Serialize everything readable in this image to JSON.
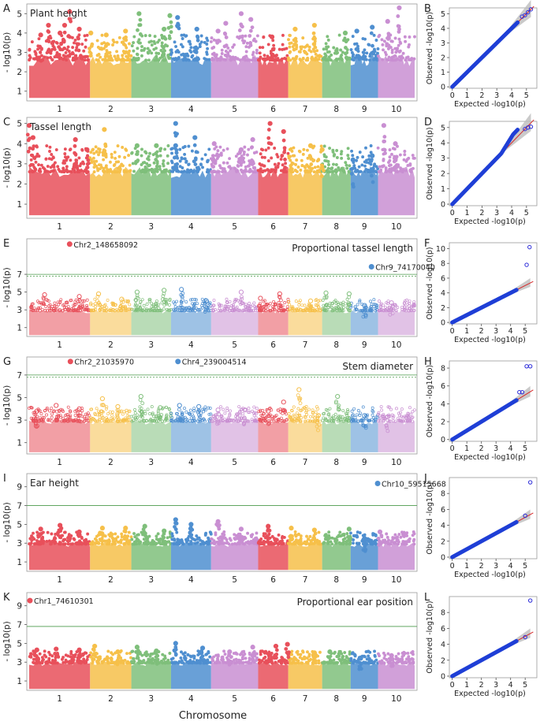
{
  "figure": {
    "xlabel": "Chromosome",
    "chrom_labels": [
      "1",
      "2",
      "3",
      "4",
      "5",
      "6",
      "7",
      "8",
      "9",
      "10"
    ],
    "chrom_colors": [
      "#e8505b",
      "#f6c04a",
      "#7fbf7b",
      "#4f8fd0",
      "#c98fd2",
      "#e8505b",
      "#f6c04a",
      "#7fbf7b",
      "#4f8fd0",
      "#c98fd2"
    ],
    "qq_xlabel": "Expected -log10(p)",
    "qq_ylabel": "Observed -log10(p)",
    "manhattan_ylabel": "- log10(p)"
  },
  "chart_data": [
    {
      "type": "scatter",
      "kind": "manhattan",
      "panel": "A",
      "title": "Plant height",
      "title_pos": "top-left",
      "ylim": [
        0.5,
        5.5
      ],
      "yticks": [
        1,
        2,
        3,
        4,
        5
      ],
      "filled": true,
      "threshold": null,
      "peaks": [
        [
          0.3,
          3.9
        ],
        [
          0.5,
          4.4
        ],
        [
          0.8,
          4.0
        ],
        [
          0.92,
          4.4
        ],
        [
          1.05,
          5.1
        ],
        [
          1.3,
          4.2
        ],
        [
          1.6,
          4.0
        ],
        [
          2.0,
          3.9
        ],
        [
          2.5,
          4.1
        ],
        [
          2.85,
          5.0
        ],
        [
          3.5,
          4.2
        ],
        [
          3.65,
          4.9
        ],
        [
          3.85,
          4.8
        ],
        [
          4.35,
          4.2
        ],
        [
          4.9,
          4.1
        ],
        [
          5.1,
          4.5
        ],
        [
          5.5,
          5.0
        ],
        [
          5.75,
          4.7
        ],
        [
          6.3,
          3.8
        ],
        [
          6.9,
          4.2
        ],
        [
          7.4,
          4.4
        ],
        [
          8.2,
          4.0
        ],
        [
          8.5,
          4.1
        ],
        [
          8.9,
          4.3
        ],
        [
          9.3,
          4.6
        ],
        [
          9.6,
          5.3
        ]
      ],
      "highlights": []
    },
    {
      "type": "scatter",
      "kind": "manhattan",
      "panel": "C",
      "title": "Tassel length",
      "title_pos": "top-left",
      "ylim": [
        0.3,
        5.3
      ],
      "yticks": [
        1,
        2,
        3,
        4,
        5
      ],
      "filled": true,
      "threshold": null,
      "peaks": [
        [
          0.0,
          4.9
        ],
        [
          0.1,
          4.3
        ],
        [
          1.2,
          4.2
        ],
        [
          1.5,
          3.7
        ],
        [
          1.95,
          4.7
        ],
        [
          2.8,
          3.9
        ],
        [
          3.3,
          3.9
        ],
        [
          3.8,
          3.9
        ],
        [
          3.8,
          5.0
        ],
        [
          4.3,
          4.3
        ],
        [
          4.8,
          4.0
        ],
        [
          5.5,
          3.7
        ],
        [
          5.8,
          4.2
        ],
        [
          6.25,
          5.0
        ],
        [
          6.6,
          4.6
        ],
        [
          7.3,
          3.9
        ],
        [
          7.6,
          3.7
        ],
        [
          8.4,
          3.2
        ],
        [
          8.9,
          3.4
        ],
        [
          9.2,
          4.9
        ],
        [
          9.5,
          4.0
        ]
      ],
      "highlights": []
    },
    {
      "type": "scatter",
      "kind": "manhattan",
      "panel": "E",
      "title": "Proportional tassel length",
      "title_pos": "top-right",
      "ylim": [
        0,
        11
      ],
      "yticks": [
        1,
        3,
        5,
        7
      ],
      "filled": false,
      "threshold": 6.8,
      "threshold2": 7.0,
      "peaks": [
        [
          0.4,
          4.7
        ],
        [
          1.3,
          4.5
        ],
        [
          1.8,
          4.8
        ],
        [
          2.4,
          4.2
        ],
        [
          2.8,
          5.0
        ],
        [
          3.5,
          5.2
        ],
        [
          3.95,
          5.3
        ],
        [
          4.6,
          4.0
        ],
        [
          5.5,
          5.0
        ],
        [
          6.0,
          4.3
        ],
        [
          6.5,
          4.8
        ],
        [
          7.3,
          4.0
        ],
        [
          7.7,
          4.9
        ],
        [
          8.3,
          4.8
        ],
        [
          8.7,
          3.5
        ],
        [
          9.4,
          3.8
        ]
      ],
      "highlights": [
        {
          "label": "Chr2_148658092",
          "pos": 1.05,
          "y": 10.4
        },
        {
          "label": "Chr9_74170040",
          "pos": 8.88,
          "y": 7.85
        }
      ]
    },
    {
      "type": "scatter",
      "kind": "manhattan",
      "panel": "G",
      "title": "Stem diameter",
      "title_pos": "top-right",
      "ylim": [
        0,
        8.6
      ],
      "yticks": [
        1,
        3,
        5,
        7
      ],
      "filled": false,
      "threshold": 6.8,
      "threshold2": 7.0,
      "peaks": [
        [
          0.2,
          3.8
        ],
        [
          0.7,
          4.3
        ],
        [
          1.3,
          4.0
        ],
        [
          1.9,
          4.9
        ],
        [
          2.3,
          4.2
        ],
        [
          2.9,
          5.1
        ],
        [
          3.4,
          4.1
        ],
        [
          3.9,
          4.3
        ],
        [
          4.4,
          4.2
        ],
        [
          4.9,
          3.9
        ],
        [
          5.6,
          3.9
        ],
        [
          6.2,
          3.8
        ],
        [
          6.6,
          4.6
        ],
        [
          7.0,
          5.7
        ],
        [
          7.5,
          3.4
        ],
        [
          8.0,
          5.1
        ],
        [
          8.7,
          3.4
        ],
        [
          9.3,
          3.3
        ]
      ],
      "highlights": [
        {
          "label": "Chr2_21035970",
          "pos": 1.07,
          "y": 8.2
        },
        {
          "label": "Chr4_239004514",
          "pos": 3.86,
          "y": 8.2
        }
      ]
    },
    {
      "type": "scatter",
      "kind": "manhattan",
      "panel": "I",
      "title": "Ear height",
      "title_pos": "top-left",
      "ylim": [
        0,
        10.4
      ],
      "yticks": [
        1,
        3,
        5,
        7,
        9
      ],
      "filled": true,
      "threshold": 7.0,
      "peaks": [
        [
          0.3,
          4.5
        ],
        [
          0.8,
          4.9
        ],
        [
          1.3,
          4.2
        ],
        [
          1.9,
          4.6
        ],
        [
          2.5,
          4.6
        ],
        [
          3.0,
          4.8
        ],
        [
          3.5,
          4.3
        ],
        [
          3.8,
          5.5
        ],
        [
          4.2,
          5.0
        ],
        [
          4.9,
          5.3
        ],
        [
          5.5,
          4.5
        ],
        [
          6.2,
          4.8
        ],
        [
          6.8,
          4.6
        ],
        [
          7.4,
          4.4
        ],
        [
          8.3,
          4.5
        ],
        [
          8.7,
          3.5
        ],
        [
          9.1,
          4.2
        ]
      ],
      "highlights": [
        {
          "label": "Chr10_59515668",
          "pos": 9.04,
          "y": 9.35
        }
      ]
    },
    {
      "type": "scatter",
      "kind": "manhattan",
      "panel": "K",
      "title": "Proportional ear position",
      "title_pos": "top-right",
      "ylim": [
        0,
        10.4
      ],
      "yticks": [
        1,
        3,
        5,
        7,
        9
      ],
      "filled": true,
      "threshold": 6.8,
      "peaks": [
        [
          0.2,
          4.3
        ],
        [
          0.7,
          4.4
        ],
        [
          1.3,
          4.3
        ],
        [
          1.7,
          4.7
        ],
        [
          2.3,
          4.1
        ],
        [
          2.8,
          4.6
        ],
        [
          3.3,
          4.2
        ],
        [
          3.8,
          5.0
        ],
        [
          4.5,
          4.5
        ],
        [
          5.2,
          4.1
        ],
        [
          5.8,
          4.6
        ],
        [
          6.4,
          4.7
        ],
        [
          6.7,
          4.9
        ],
        [
          7.4,
          4.0
        ],
        [
          7.8,
          4.1
        ],
        [
          8.6,
          3.4
        ],
        [
          9.4,
          3.7
        ]
      ],
      "highlights": [
        {
          "label": "Chr1_74610301",
          "pos": 0.02,
          "y": 9.55
        }
      ]
    },
    {
      "type": "scatter",
      "kind": "qq",
      "panel": "B",
      "xlim": [
        -0.2,
        5.7
      ],
      "ylim": [
        -0.1,
        5.4
      ],
      "xticks": [
        0,
        1,
        2,
        3,
        4,
        5
      ],
      "yticks": [
        0,
        1,
        2,
        3,
        4,
        5
      ],
      "max_expected": 5.3,
      "bulge": 0.0,
      "tail": [
        [
          4.7,
          4.8
        ],
        [
          4.9,
          4.9
        ],
        [
          5.1,
          5.1
        ],
        [
          5.3,
          5.3
        ]
      ]
    },
    {
      "type": "scatter",
      "kind": "qq",
      "panel": "D",
      "xlim": [
        -0.2,
        5.7
      ],
      "ylim": [
        -0.1,
        5.4
      ],
      "xticks": [
        0,
        1,
        2,
        3,
        4,
        5
      ],
      "yticks": [
        0,
        1,
        2,
        3,
        4,
        5
      ],
      "max_expected": 5.3,
      "bulge": 0.45,
      "tail": [
        [
          4.9,
          4.9
        ],
        [
          5.1,
          5.0
        ],
        [
          5.3,
          5.05
        ]
      ]
    },
    {
      "type": "scatter",
      "kind": "qq",
      "panel": "F",
      "xlim": [
        -0.2,
        5.8
      ],
      "ylim": [
        -0.2,
        10.8
      ],
      "xticks": [
        0,
        1,
        2,
        3,
        4,
        5
      ],
      "yticks": [
        0,
        2,
        4,
        6,
        8,
        10
      ],
      "max_expected": 5.35,
      "bulge": 0.0,
      "tail": [
        [
          5.1,
          7.8
        ],
        [
          5.3,
          10.2
        ]
      ]
    },
    {
      "type": "scatter",
      "kind": "qq",
      "panel": "H",
      "xlim": [
        -0.2,
        5.8
      ],
      "ylim": [
        -0.2,
        8.8
      ],
      "xticks": [
        0,
        1,
        2,
        3,
        4,
        5
      ],
      "yticks": [
        0,
        2,
        4,
        6,
        8
      ],
      "max_expected": 5.35,
      "bulge": 0.0,
      "tail": [
        [
          4.6,
          5.3
        ],
        [
          4.8,
          5.3
        ],
        [
          5.1,
          8.2
        ],
        [
          5.35,
          8.2
        ]
      ]
    },
    {
      "type": "scatter",
      "kind": "qq",
      "panel": "J",
      "xlim": [
        -0.2,
        5.8
      ],
      "ylim": [
        -0.2,
        10.0
      ],
      "xticks": [
        0,
        1,
        2,
        3,
        4,
        5
      ],
      "yticks": [
        0,
        2,
        4,
        6,
        8
      ],
      "max_expected": 5.35,
      "bulge": 0.0,
      "tail": [
        [
          5.0,
          5.2
        ],
        [
          5.35,
          9.4
        ]
      ]
    },
    {
      "type": "scatter",
      "kind": "qq",
      "panel": "L",
      "xlim": [
        -0.2,
        5.8
      ],
      "ylim": [
        -0.2,
        10.0
      ],
      "xticks": [
        0,
        1,
        2,
        3,
        4,
        5
      ],
      "yticks": [
        0,
        2,
        4,
        6,
        8
      ],
      "max_expected": 5.35,
      "bulge": 0.0,
      "tail": [
        [
          5.0,
          4.9
        ],
        [
          5.35,
          9.5
        ]
      ]
    }
  ]
}
